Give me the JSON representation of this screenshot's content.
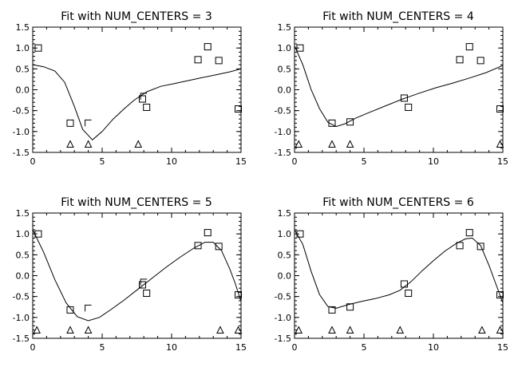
{
  "chart_data": [
    {
      "type": "scatter",
      "title": "Fit with NUM_CENTERS = 3",
      "xlim": [
        0,
        15
      ],
      "ylim": [
        -1.5,
        1.5
      ],
      "xticks": [
        "0",
        "5",
        "10",
        "15"
      ],
      "yticks": [
        "-1.5",
        "-1.0",
        "-0.5",
        "0.0",
        "0.5",
        "1.0",
        "1.5"
      ],
      "series": [
        {
          "marker": "square",
          "points": [
            [
              0.4,
              1.0
            ],
            [
              2.7,
              -0.8
            ],
            [
              7.9,
              -0.22
            ],
            [
              8.2,
              -0.42
            ],
            [
              11.9,
              0.72
            ],
            [
              12.6,
              1.03
            ],
            [
              13.4,
              0.7
            ],
            [
              14.8,
              -0.46
            ]
          ]
        },
        {
          "marker": "corner",
          "points": [
            [
              4.0,
              -0.8
            ],
            [
              8.0,
              -0.16
            ]
          ]
        },
        {
          "marker": "triangle",
          "points": [
            [
              2.7,
              -1.3
            ],
            [
              4.0,
              -1.3
            ],
            [
              7.6,
              -1.3
            ]
          ]
        },
        {
          "marker": "line",
          "points": [
            [
              0,
              0.6
            ],
            [
              0.8,
              0.55
            ],
            [
              1.6,
              0.45
            ],
            [
              2.3,
              0.18
            ],
            [
              3.0,
              -0.4
            ],
            [
              3.6,
              -0.95
            ],
            [
              4.3,
              -1.2
            ],
            [
              5.0,
              -1.0
            ],
            [
              5.8,
              -0.7
            ],
            [
              6.6,
              -0.45
            ],
            [
              7.3,
              -0.25
            ],
            [
              8.2,
              -0.05
            ],
            [
              9.2,
              0.08
            ],
            [
              10.2,
              0.15
            ],
            [
              11.2,
              0.22
            ],
            [
              12.2,
              0.29
            ],
            [
              13.2,
              0.36
            ],
            [
              14.2,
              0.43
            ],
            [
              15,
              0.5
            ]
          ]
        }
      ]
    },
    {
      "type": "scatter",
      "title": "Fit with NUM_CENTERS = 4",
      "xlim": [
        0,
        15
      ],
      "ylim": [
        -1.5,
        1.5
      ],
      "xticks": [
        "0",
        "5",
        "10",
        "15"
      ],
      "yticks": [
        "-1.5",
        "-1.0",
        "-0.5",
        "0.0",
        "0.5",
        "1.0",
        "1.5"
      ],
      "series": [
        {
          "marker": "square",
          "points": [
            [
              0.4,
              1.0
            ],
            [
              2.7,
              -0.8
            ],
            [
              4.0,
              -0.77
            ],
            [
              7.9,
              -0.2
            ],
            [
              8.2,
              -0.42
            ],
            [
              11.9,
              0.72
            ],
            [
              12.6,
              1.03
            ],
            [
              13.4,
              0.7
            ],
            [
              14.8,
              -0.46
            ]
          ]
        },
        {
          "marker": "triangle",
          "points": [
            [
              0.3,
              -1.3
            ],
            [
              2.7,
              -1.3
            ],
            [
              4.0,
              -1.3
            ],
            [
              14.8,
              -1.3
            ]
          ]
        },
        {
          "marker": "line",
          "points": [
            [
              0,
              1.05
            ],
            [
              0.6,
              0.6
            ],
            [
              1.2,
              0.0
            ],
            [
              1.8,
              -0.45
            ],
            [
              2.4,
              -0.78
            ],
            [
              3.0,
              -0.88
            ],
            [
              3.6,
              -0.82
            ],
            [
              4.4,
              -0.68
            ],
            [
              5.4,
              -0.54
            ],
            [
              6.6,
              -0.38
            ],
            [
              7.8,
              -0.22
            ],
            [
              9.0,
              -0.08
            ],
            [
              10.2,
              0.05
            ],
            [
              11.4,
              0.16
            ],
            [
              12.6,
              0.28
            ],
            [
              13.8,
              0.41
            ],
            [
              15,
              0.58
            ]
          ]
        }
      ]
    },
    {
      "type": "scatter",
      "title": "Fit with NUM_CENTERS = 5",
      "xlim": [
        0,
        15
      ],
      "ylim": [
        -1.5,
        1.5
      ],
      "xticks": [
        "0",
        "5",
        "10",
        "15"
      ],
      "yticks": [
        "-1.5",
        "-1.0",
        "-0.5",
        "0.0",
        "0.5",
        "1.0",
        "1.5"
      ],
      "series": [
        {
          "marker": "square",
          "points": [
            [
              0.4,
              1.0
            ],
            [
              2.7,
              -0.82
            ],
            [
              7.9,
              -0.22
            ],
            [
              8.2,
              -0.42
            ],
            [
              11.9,
              0.72
            ],
            [
              12.6,
              1.03
            ],
            [
              13.4,
              0.7
            ],
            [
              14.8,
              -0.46
            ]
          ]
        },
        {
          "marker": "corner",
          "points": [
            [
              4.0,
              -0.78
            ],
            [
              8.0,
              -0.16
            ]
          ]
        },
        {
          "marker": "triangle",
          "points": [
            [
              0.3,
              -1.3
            ],
            [
              2.7,
              -1.3
            ],
            [
              4.0,
              -1.3
            ],
            [
              13.5,
              -1.3
            ],
            [
              14.8,
              -1.3
            ]
          ]
        },
        {
          "marker": "line",
          "points": [
            [
              0,
              1.1
            ],
            [
              0.8,
              0.55
            ],
            [
              1.6,
              -0.1
            ],
            [
              2.4,
              -0.65
            ],
            [
              3.2,
              -0.98
            ],
            [
              4.0,
              -1.08
            ],
            [
              4.8,
              -1.0
            ],
            [
              5.6,
              -0.82
            ],
            [
              6.6,
              -0.58
            ],
            [
              7.6,
              -0.32
            ],
            [
              8.6,
              -0.06
            ],
            [
              9.6,
              0.2
            ],
            [
              10.6,
              0.44
            ],
            [
              11.6,
              0.66
            ],
            [
              12.4,
              0.8
            ],
            [
              13.0,
              0.8
            ],
            [
              13.6,
              0.6
            ],
            [
              14.2,
              0.15
            ],
            [
              14.6,
              -0.2
            ],
            [
              15,
              -0.62
            ]
          ]
        }
      ]
    },
    {
      "type": "scatter",
      "title": "Fit with NUM_CENTERS = 6",
      "xlim": [
        0,
        15
      ],
      "ylim": [
        -1.5,
        1.5
      ],
      "xticks": [
        "0",
        "5",
        "10",
        "15"
      ],
      "yticks": [
        "-1.5",
        "-1.0",
        "-0.5",
        "0.0",
        "0.5",
        "1.0",
        "1.5"
      ],
      "series": [
        {
          "marker": "square",
          "points": [
            [
              0.4,
              1.0
            ],
            [
              2.7,
              -0.82
            ],
            [
              4.0,
              -0.75
            ],
            [
              7.9,
              -0.2
            ],
            [
              8.2,
              -0.42
            ],
            [
              11.9,
              0.72
            ],
            [
              12.6,
              1.03
            ],
            [
              13.4,
              0.7
            ],
            [
              14.8,
              -0.46
            ]
          ]
        },
        {
          "marker": "triangle",
          "points": [
            [
              0.3,
              -1.3
            ],
            [
              2.7,
              -1.3
            ],
            [
              4.0,
              -1.3
            ],
            [
              7.6,
              -1.3
            ],
            [
              13.5,
              -1.3
            ],
            [
              14.8,
              -1.3
            ]
          ]
        },
        {
          "marker": "line",
          "points": [
            [
              0,
              1.1
            ],
            [
              0.6,
              0.75
            ],
            [
              1.2,
              0.1
            ],
            [
              1.8,
              -0.45
            ],
            [
              2.4,
              -0.74
            ],
            [
              3.0,
              -0.78
            ],
            [
              3.8,
              -0.7
            ],
            [
              4.8,
              -0.62
            ],
            [
              5.8,
              -0.55
            ],
            [
              6.8,
              -0.46
            ],
            [
              7.6,
              -0.35
            ],
            [
              8.4,
              -0.14
            ],
            [
              9.2,
              0.12
            ],
            [
              10.0,
              0.36
            ],
            [
              10.8,
              0.58
            ],
            [
              11.6,
              0.76
            ],
            [
              12.3,
              0.88
            ],
            [
              12.8,
              0.9
            ],
            [
              13.4,
              0.72
            ],
            [
              14.0,
              0.25
            ],
            [
              14.5,
              -0.2
            ],
            [
              15,
              -0.65
            ]
          ]
        }
      ]
    }
  ]
}
